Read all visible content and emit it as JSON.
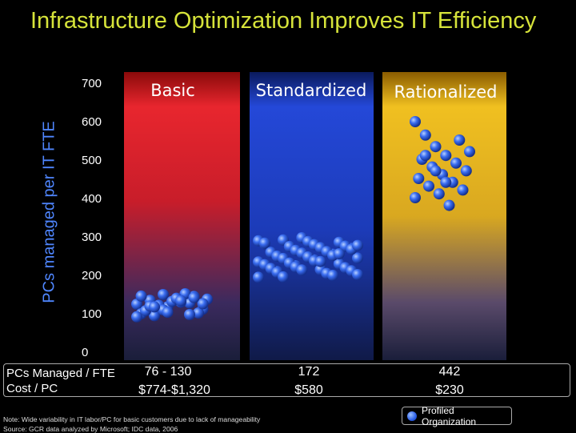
{
  "title": "Infrastructure Optimization Improves IT Efficiency",
  "chart_data": {
    "type": "scatter",
    "title": "Infrastructure Optimization Improves IT Efficiency",
    "ylabel": "PCs managed per IT FTE",
    "xlabel": "",
    "ylim": [
      0,
      700
    ],
    "yticks": [
      700,
      600,
      500,
      400,
      300,
      200,
      100,
      0
    ],
    "grid": false,
    "legend": "bottom-right",
    "colors": {
      "basic": "#d82424",
      "standardized": "#1f44c8",
      "rationalized": "#e6b020",
      "dot": "#3a6df0"
    },
    "series": [
      {
        "name": "Basic",
        "points": [
          125,
          135,
          150,
          140,
          128,
          112,
          100,
          95,
          118,
          130,
          145,
          138,
          108,
          122,
          132,
          152,
          102,
          92,
          120,
          110,
          140,
          98,
          126,
          146,
          118,
          104,
          134,
          142
        ]
      },
      {
        "name": "Standardized",
        "points": [
          195,
          210,
          225,
          240,
          255,
          270,
          282,
          292,
          298,
          215,
          230,
          245,
          260,
          275,
          288,
          205,
          220,
          235,
          250,
          265,
          280,
          200,
          212,
          228,
          244,
          258,
          272,
          286,
          202,
          218,
          232,
          248,
          262,
          276,
          290,
          208,
          222,
          238,
          252,
          268,
          284,
          196,
          214,
          236,
          256,
          278
        ]
      },
      {
        "name": "Rationalized",
        "points": [
          600,
          565,
          535,
          512,
          492,
          472,
          452,
          432,
          412,
          382,
          552,
          522,
          502,
          482,
          462,
          442,
          422,
          402,
          512,
          472,
          442
        ]
      }
    ]
  },
  "table": {
    "row_labels": [
      "PCs Managed / FTE",
      "Cost / PC"
    ],
    "columns": [
      {
        "pcs": "76 - 130",
        "cost": "$774-$1,320"
      },
      {
        "pcs": "172",
        "cost": "$580"
      },
      {
        "pcs": "442",
        "cost": "$230"
      }
    ]
  },
  "legend_label": "Profiled Organization",
  "note": "Note: Wide variability in IT labor/PC for basic customers due to lack of manageability",
  "source": "Source:   GCR data analyzed by Microsoft; IDC data, 2006"
}
